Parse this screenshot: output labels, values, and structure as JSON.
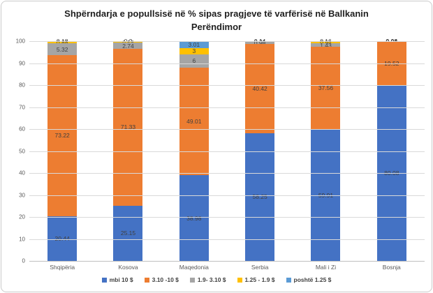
{
  "title": "Shpërndarja e popullsisë në % sipas pragjeve të varfërisë në Ballkanin Perëndimor",
  "chart_data": {
    "type": "bar",
    "stacked": true,
    "title": "Shpërndarja e popullsisë në % sipas pragjeve të varfërisë në Ballkanin Perëndimor",
    "categories": [
      "Shqipëria",
      "Kosova",
      "Maqedonia",
      "Serbia",
      "Mali i Zi",
      "Bosnja"
    ],
    "series": [
      {
        "name": "mbi 10 $",
        "color": "#4472C4",
        "values": [
          20.44,
          25.15,
          38.98,
          58.25,
          59.91,
          80.08
        ],
        "labels": [
          "20.44",
          "25.15",
          "38.98",
          "58.25",
          "59.91",
          "80.08"
        ]
      },
      {
        "name": "3.10 -10 $",
        "color": "#ED7D31",
        "values": [
          73.22,
          71.33,
          49.01,
          40.42,
          37.56,
          19.52
        ],
        "labels": [
          "73.22",
          "71.33",
          "49.01",
          "40.42",
          "37.56",
          "19.52"
        ]
      },
      {
        "name": "1.9- 3.10 $",
        "color": "#A5A5A5",
        "values": [
          5.32,
          2.74,
          6,
          0.98,
          1.43,
          0.28
        ],
        "labels": [
          "5.32",
          "2.74",
          "6",
          "0.98",
          "1.43",
          "0.28"
        ]
      },
      {
        "name": "1.25 - 1.9 $",
        "color": "#FFC000",
        "values": [
          0.88,
          0.58,
          3,
          0.21,
          0.94,
          0.08
        ],
        "labels": [
          "0.88",
          "0.58",
          "3",
          "0.21",
          "0.94",
          "0.08"
        ]
      },
      {
        "name": "poshtë 1.25 $",
        "color": "#5B9BD5",
        "values": [
          0.18,
          0.2,
          3.01,
          0.14,
          0.16,
          0.04
        ],
        "labels": [
          "0.18",
          "0.2",
          "3.01",
          "0.14",
          "0.16",
          "0.04"
        ]
      }
    ],
    "ylim": [
      0,
      100
    ],
    "yticks": [
      0,
      10,
      20,
      30,
      40,
      50,
      60,
      70,
      80,
      90,
      100
    ],
    "grid": true,
    "legend_position": "bottom"
  }
}
